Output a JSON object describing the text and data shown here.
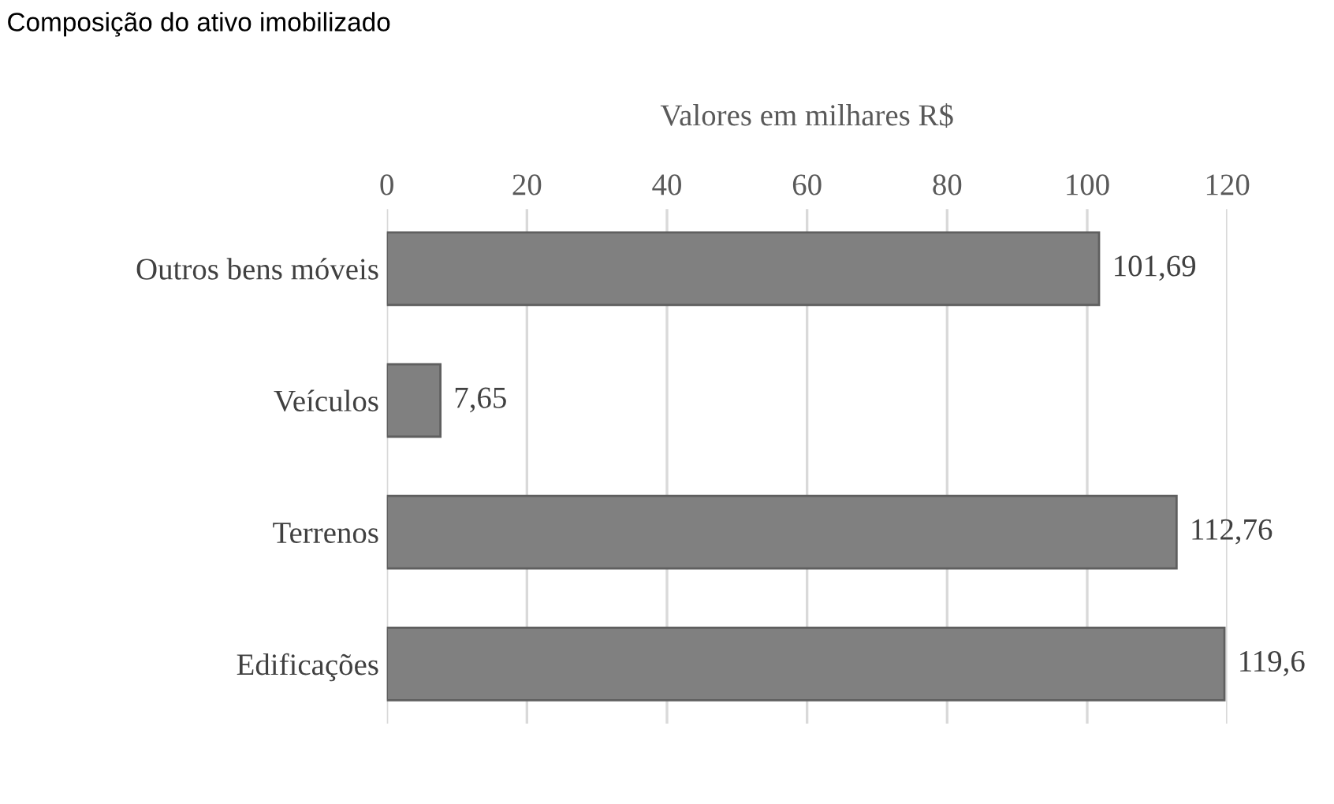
{
  "chart_data": {
    "type": "bar",
    "orientation": "horizontal",
    "title": "Composição do ativo imobilizado",
    "xlabel": "Valores em milhares R$",
    "categories": [
      "Outros bens móveis",
      "Veículos",
      "Terrenos",
      "Edificações"
    ],
    "values": [
      101.69,
      7.65,
      112.76,
      119.6
    ],
    "value_labels": [
      "101,69",
      "7,65",
      "112,76",
      "119,6"
    ],
    "color": "#808080",
    "xlim": [
      0,
      120
    ],
    "xticks": [
      0,
      20,
      40,
      60,
      80,
      100,
      120
    ],
    "grid": "x",
    "legend": false
  }
}
